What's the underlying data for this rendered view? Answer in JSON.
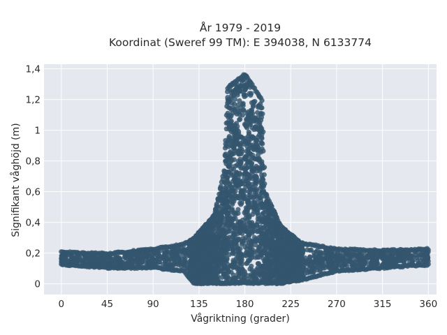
{
  "chart_data": {
    "type": "scatter",
    "title": [
      "År 1979 - 2019",
      "Koordinat (Sweref 99 TM): E 394038, N 6133774"
    ],
    "xlabel": "Vågriktning (grader)",
    "ylabel": "Signifikant våghöjd (m)",
    "xlim": [
      -17,
      368
    ],
    "ylim": [
      -0.07,
      1.43
    ],
    "x_ticks": [
      0,
      45,
      90,
      135,
      180,
      225,
      270,
      315,
      360
    ],
    "x_tick_labels": [
      "0",
      "45",
      "90",
      "135",
      "180",
      "225",
      "270",
      "315",
      "360"
    ],
    "y_ticks": [
      0,
      0.2,
      0.4,
      0.6,
      0.8,
      1.0,
      1.2,
      1.4
    ],
    "y_tick_labels": [
      "0",
      "0,2",
      "0,4",
      "0,6",
      "0,8",
      "1",
      "1,2",
      "1,4"
    ],
    "grid": true,
    "plot_background": "#e5e8ef",
    "grid_color": "#ffffff",
    "marker_color": "#33566e",
    "series": [
      {
        "mode": "markers",
        "envelope": [
          {
            "x": 0,
            "y_min": 0.12,
            "y_max": 0.21
          },
          {
            "x": 45,
            "y_min": 0.1,
            "y_max": 0.2
          },
          {
            "x": 90,
            "y_min": 0.1,
            "y_max": 0.23
          },
          {
            "x": 120,
            "y_min": 0.08,
            "y_max": 0.26
          },
          {
            "x": 130,
            "y_min": 0.0,
            "y_max": 0.3
          },
          {
            "x": 150,
            "y_min": 0.0,
            "y_max": 0.45
          },
          {
            "x": 160,
            "y_min": 0.0,
            "y_max": 0.75
          },
          {
            "x": 163,
            "y_min": 0.0,
            "y_max": 1.28
          },
          {
            "x": 180,
            "y_min": 0.0,
            "y_max": 1.37
          },
          {
            "x": 197,
            "y_min": 0.0,
            "y_max": 1.2
          },
          {
            "x": 200,
            "y_min": 0.0,
            "y_max": 0.6
          },
          {
            "x": 215,
            "y_min": 0.0,
            "y_max": 0.38
          },
          {
            "x": 235,
            "y_min": 0.02,
            "y_max": 0.27
          },
          {
            "x": 270,
            "y_min": 0.08,
            "y_max": 0.23
          },
          {
            "x": 315,
            "y_min": 0.1,
            "y_max": 0.22
          },
          {
            "x": 360,
            "y_min": 0.12,
            "y_max": 0.23
          }
        ]
      }
    ]
  }
}
